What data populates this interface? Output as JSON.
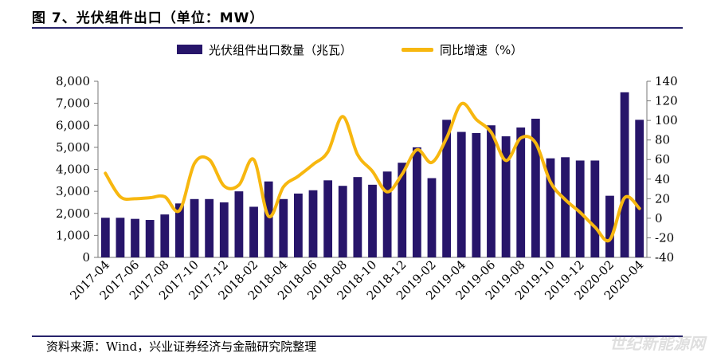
{
  "header": {
    "title": "图 7、光伏组件出口（单位：MW）"
  },
  "footer": {
    "source": "资料来源：Wind，兴业证券经济与金融研究院整理",
    "watermark": "世纪新能源网"
  },
  "colors": {
    "bar": "#27156a",
    "line": "#f7b70f",
    "rule": "#27236b"
  },
  "chart_data": {
    "type": "bar",
    "legend": [
      "光伏组件出口数量（兆瓦）",
      "同比增速（%）"
    ],
    "categories": [
      "2017-04",
      "2017-05",
      "2017-06",
      "2017-07",
      "2017-08",
      "2017-09",
      "2017-10",
      "2017-11",
      "2017-12",
      "2018-01",
      "2018-02",
      "2018-03",
      "2018-04",
      "2018-05",
      "2018-06",
      "2018-07",
      "2018-08",
      "2018-09",
      "2018-10",
      "2018-11",
      "2018-12",
      "2019-01",
      "2019-02",
      "2019-03",
      "2019-04",
      "2019-05",
      "2019-06",
      "2019-07",
      "2019-08",
      "2019-09",
      "2019-10",
      "2019-11",
      "2019-12",
      "2020-01",
      "2020-02",
      "2020-03",
      "2020-04"
    ],
    "x_tick_labels": [
      "2017-04",
      "2017-06",
      "2017-08",
      "2017-10",
      "2017-12",
      "2018-02",
      "2018-04",
      "2018-06",
      "2018-08",
      "2018-10",
      "2018-12",
      "2019-02",
      "2019-04",
      "2019-06",
      "2019-08",
      "2019-10",
      "2019-12",
      "2020-02",
      "2020-04"
    ],
    "series": [
      {
        "name": "光伏组件出口数量（兆瓦）",
        "axis": "left",
        "type": "bar",
        "values": [
          1800,
          1800,
          1750,
          1700,
          1950,
          2450,
          2650,
          2650,
          2500,
          3000,
          2300,
          3450,
          2650,
          2900,
          3050,
          3500,
          3250,
          3650,
          3300,
          3900,
          4300,
          5000,
          3600,
          6250,
          5700,
          5650,
          6000,
          5500,
          5900,
          6300,
          4500,
          4550,
          4400,
          4400,
          2800,
          7500,
          6250
        ]
      },
      {
        "name": "同比增速（%）",
        "axis": "right",
        "type": "line",
        "values": [
          46,
          22,
          20,
          21,
          22,
          8,
          56,
          60,
          33,
          34,
          60,
          2,
          32,
          43,
          55,
          68,
          104,
          65,
          48,
          27,
          45,
          70,
          57,
          82,
          117,
          101,
          88,
          59,
          82,
          77,
          37,
          19,
          6,
          -9,
          -22,
          21,
          10
        ]
      }
    ],
    "y_left": {
      "range": [
        0,
        8000
      ],
      "ticks": [
        "0",
        "1,000",
        "2,000",
        "3,000",
        "4,000",
        "5,000",
        "6,000",
        "7,000",
        "8,000"
      ]
    },
    "y_right": {
      "range": [
        -40,
        140
      ],
      "ticks": [
        "-40",
        "-20",
        "0",
        "20",
        "40",
        "60",
        "80",
        "100",
        "120",
        "140"
      ]
    },
    "grid": false
  }
}
